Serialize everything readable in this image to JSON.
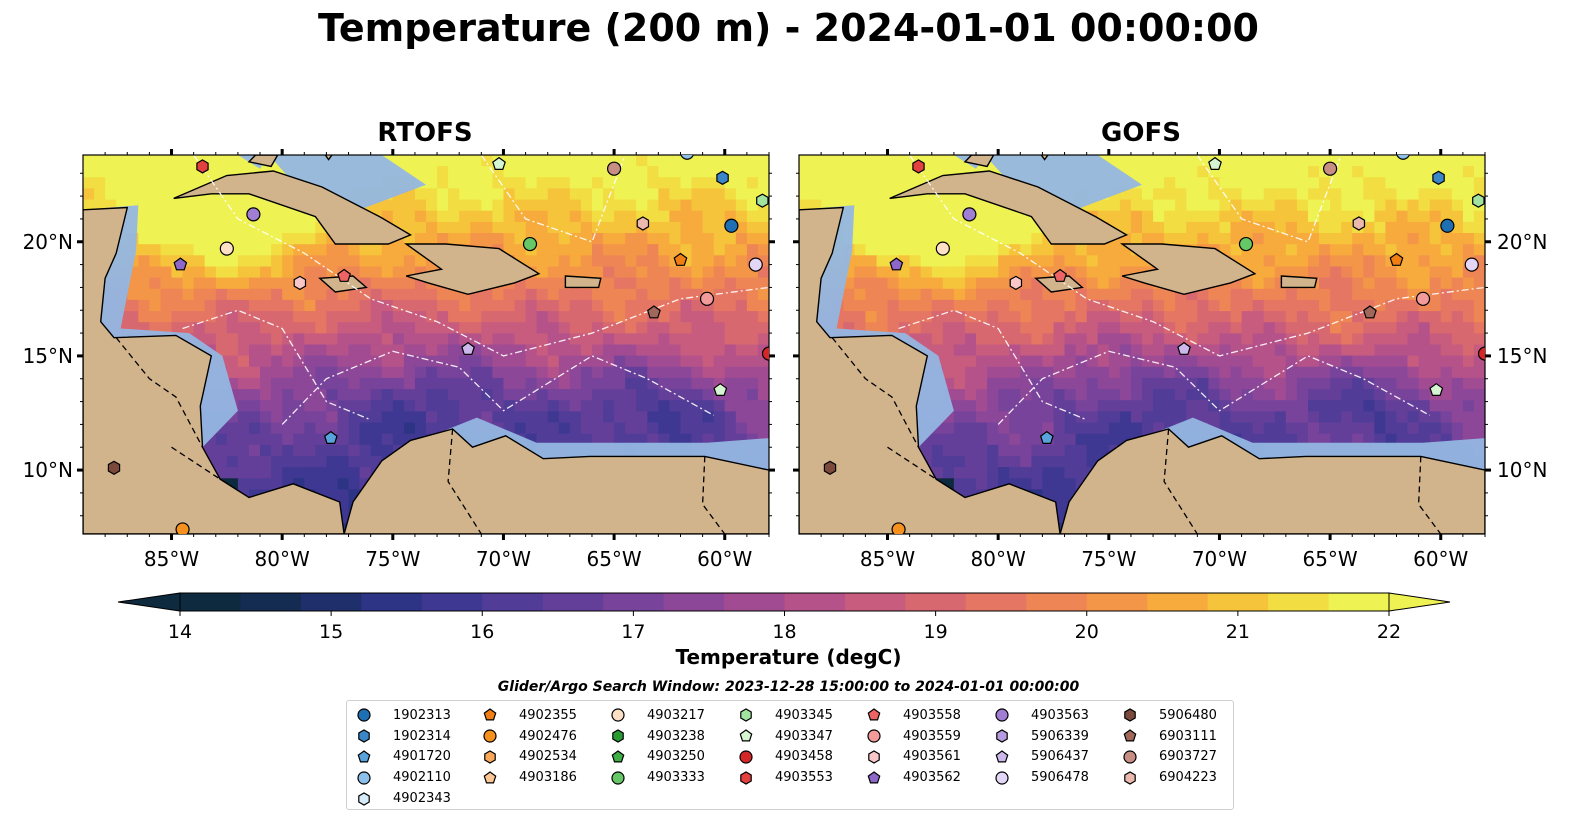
{
  "title": "Temperature (200 m) - 2024-01-01 00:00:00",
  "panels": [
    {
      "title": "RTOFS"
    },
    {
      "title": "GOFS"
    }
  ],
  "axes": {
    "x_ticks": [
      "85°W",
      "80°W",
      "75°W",
      "70°W",
      "65°W",
      "60°W"
    ],
    "x_tick_values": [
      -85,
      -80,
      -75,
      -70,
      -65,
      -60
    ],
    "xlim": [
      -89,
      -58
    ],
    "y_ticks": [
      "10°N",
      "15°N",
      "20°N"
    ],
    "y_tick_values": [
      10,
      15,
      20
    ],
    "ylim": [
      7.2,
      23.8
    ]
  },
  "colorbar": {
    "label": "Temperature (degC)",
    "min": 14,
    "max": 22,
    "ticks": [
      "14",
      "15",
      "16",
      "17",
      "18",
      "19",
      "20",
      "21",
      "22"
    ],
    "colors": [
      "#0d2a3e",
      "#142c52",
      "#1f2f6b",
      "#2d3385",
      "#3f3892",
      "#513c98",
      "#643f9a",
      "#78439b",
      "#8c4798",
      "#a14b92",
      "#b5528a",
      "#c75c7e",
      "#d86870",
      "#e57663",
      "#ee8554",
      "#f49647",
      "#f7ab3d",
      "#f6c43a",
      "#f2dd42",
      "#eef253"
    ],
    "extend": "both"
  },
  "chart_data": [
    {
      "type": "heatmap",
      "title": "RTOFS",
      "variable": "Temperature (200 m)",
      "units": "degC",
      "range": [
        14,
        22
      ],
      "xlim": [
        -89,
        -58
      ],
      "ylim": [
        7.2,
        23.8
      ],
      "floats": [
        {
          "id": "4903553",
          "lon": -83.6,
          "lat": 23.3
        },
        {
          "id": "4903347",
          "lon": -70.2,
          "lat": 23.4
        },
        {
          "id": "6903727",
          "lon": -65.0,
          "lat": 23.2
        },
        {
          "id": "4902110",
          "lon": -61.7,
          "lat": 23.9
        },
        {
          "id": "1902314",
          "lon": -60.1,
          "lat": 22.8
        },
        {
          "id": "4903345",
          "lon": -58.3,
          "lat": 21.8
        },
        {
          "id": "1902313",
          "lon": -59.7,
          "lat": 20.7
        },
        {
          "id": "4903563",
          "lon": -81.3,
          "lat": 21.2
        },
        {
          "id": "4903217",
          "lon": -82.5,
          "lat": 19.7
        },
        {
          "id": "4903562",
          "lon": -84.6,
          "lat": 19.0
        },
        {
          "id": "4903333",
          "lon": -68.8,
          "lat": 19.9
        },
        {
          "id": "6904223",
          "lon": -63.7,
          "lat": 20.8
        },
        {
          "id": "4902355",
          "lon": -62.0,
          "lat": 19.2
        },
        {
          "id": "5906478",
          "lon": -58.6,
          "lat": 19.0
        },
        {
          "id": "4903561",
          "lon": -79.2,
          "lat": 18.2
        },
        {
          "id": "4903558",
          "lon": -77.2,
          "lat": 18.5
        },
        {
          "id": "4903559",
          "lon": -60.8,
          "lat": 17.5
        },
        {
          "id": "6903111",
          "lon": -63.2,
          "lat": 16.9
        },
        {
          "id": "5906437",
          "lon": -71.6,
          "lat": 15.3
        },
        {
          "id": "4903458",
          "lon": -58.0,
          "lat": 15.1
        },
        {
          "id": "4903347",
          "lon": -60.2,
          "lat": 13.5
        },
        {
          "id": "4901720",
          "lon": -77.8,
          "lat": 11.4
        },
        {
          "id": "5906480",
          "lon": -87.6,
          "lat": 10.1
        },
        {
          "id": "4902476",
          "lon": -84.5,
          "lat": 7.4
        }
      ]
    },
    {
      "type": "heatmap",
      "title": "GOFS",
      "variable": "Temperature (200 m)",
      "units": "degC",
      "range": [
        14,
        22
      ],
      "xlim": [
        -89,
        -58
      ],
      "ylim": [
        7.2,
        23.8
      ]
    }
  ],
  "legend": {
    "title": "Glider/Argo Search Window: 2023-12-28 15:00:00 to 2024-01-01 00:00:00",
    "columns": [
      [
        {
          "label": "1902313",
          "marker": "circle",
          "color": "#1f6fb4"
        },
        {
          "label": "1902314",
          "marker": "hexagon",
          "color": "#3a86c8"
        },
        {
          "label": "4901720",
          "marker": "pentagon",
          "color": "#58a3dc"
        },
        {
          "label": "4902110",
          "marker": "circle",
          "color": "#8cc0ea"
        },
        {
          "label": "4902343",
          "marker": "hexagon",
          "color": "#d6ecfb"
        }
      ],
      [
        {
          "label": "4902355",
          "marker": "pentagon",
          "color": "#f07e12"
        },
        {
          "label": "4902476",
          "marker": "circle",
          "color": "#f6911e"
        },
        {
          "label": "4902534",
          "marker": "hexagon",
          "color": "#f9a85a"
        },
        {
          "label": "4903186",
          "marker": "pentagon",
          "color": "#fcc795"
        }
      ],
      [
        {
          "label": "4903217",
          "marker": "circle",
          "color": "#fde0c6"
        },
        {
          "label": "4903238",
          "marker": "hexagon",
          "color": "#2a9a32"
        },
        {
          "label": "4903250",
          "marker": "pentagon",
          "color": "#3eae45"
        },
        {
          "label": "4903333",
          "marker": "circle",
          "color": "#66c766"
        }
      ],
      [
        {
          "label": "4903345",
          "marker": "hexagon",
          "color": "#a3e3a0"
        },
        {
          "label": "4903347",
          "marker": "pentagon",
          "color": "#d6f5d2"
        },
        {
          "label": "4903458",
          "marker": "circle",
          "color": "#d62728"
        },
        {
          "label": "4903553",
          "marker": "hexagon",
          "color": "#e34040"
        }
      ],
      [
        {
          "label": "4903558",
          "marker": "pentagon",
          "color": "#ee6464"
        },
        {
          "label": "4903559",
          "marker": "circle",
          "color": "#f39a9a"
        },
        {
          "label": "4903561",
          "marker": "hexagon",
          "color": "#f9c7c7"
        },
        {
          "label": "4903562",
          "marker": "pentagon",
          "color": "#8d67c9"
        }
      ],
      [
        {
          "label": "4903563",
          "marker": "circle",
          "color": "#a07ed3"
        },
        {
          "label": "5906339",
          "marker": "hexagon",
          "color": "#b79be0"
        },
        {
          "label": "5906437",
          "marker": "pentagon",
          "color": "#cdb8ec"
        },
        {
          "label": "5906478",
          "marker": "circle",
          "color": "#e4d6f7"
        }
      ],
      [
        {
          "label": "5906480",
          "marker": "hexagon",
          "color": "#7b4a3d"
        },
        {
          "label": "6903111",
          "marker": "pentagon",
          "color": "#a0685b"
        },
        {
          "label": "6903727",
          "marker": "circle",
          "color": "#c78f83"
        },
        {
          "label": "6904223",
          "marker": "hexagon",
          "color": "#ebb9ae"
        }
      ]
    ]
  }
}
